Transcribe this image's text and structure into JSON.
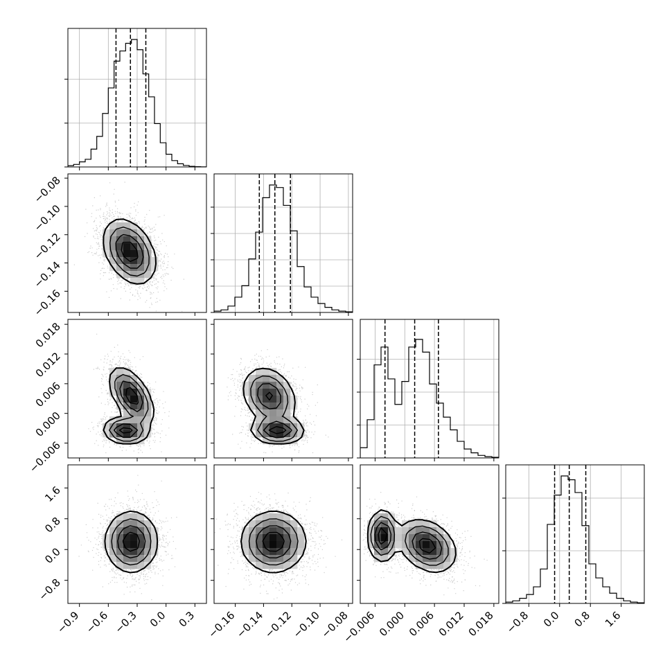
{
  "chart_data": {
    "type": "corner",
    "title": "",
    "colors": {
      "ink": "#000000",
      "grid": "#b0b0b0",
      "scatter": "#6e6e6e",
      "panel_bg": "#ffffff"
    },
    "grid": true,
    "params": [
      {
        "range": [
          -1.02,
          0.42
        ],
        "ticks": [
          -0.9,
          -0.6,
          -0.3,
          0.0,
          0.3
        ],
        "tick_labels": [
          "−0.9",
          "−0.6",
          "−0.3",
          "0.0",
          "0.3"
        ],
        "quantiles": [
          -0.52,
          -0.37,
          -0.21
        ],
        "hist_y_ticks": [
          0.0,
          0.333,
          0.667
        ],
        "hist": [
          0.01,
          0.02,
          0.04,
          0.06,
          0.14,
          0.24,
          0.42,
          0.62,
          0.83,
          0.91,
          0.97,
          1.0,
          0.92,
          0.73,
          0.55,
          0.34,
          0.19,
          0.1,
          0.05,
          0.025,
          0.012,
          0.005,
          0.002,
          0.001
        ],
        "mean": -0.37,
        "sd": 0.13
      },
      {
        "range": [
          -0.175,
          -0.077
        ],
        "ticks": [
          -0.16,
          -0.14,
          -0.12,
          -0.1,
          -0.08
        ],
        "tick_labels": [
          "−0.16",
          "−0.14",
          "−0.12",
          "−0.10",
          "−0.08"
        ],
        "quantiles": [
          -0.143,
          -0.132,
          -0.121
        ],
        "hist_y_ticks": [
          0.0,
          0.2,
          0.4,
          0.6,
          0.8
        ],
        "hist": [
          0.01,
          0.02,
          0.05,
          0.12,
          0.21,
          0.42,
          0.63,
          0.9,
          1.0,
          0.98,
          0.84,
          0.64,
          0.36,
          0.2,
          0.12,
          0.07,
          0.04,
          0.02,
          0.01,
          0.005
        ],
        "mean": -0.132,
        "sd": 0.011
      },
      {
        "range": [
          -0.009,
          0.019
        ],
        "ticks": [
          -0.006,
          0.0,
          0.006,
          0.012,
          0.018
        ],
        "tick_labels": [
          "−0.006",
          "0.000",
          "0.006",
          "0.012",
          "0.018"
        ],
        "quantiles": [
          -0.004,
          0.002,
          0.0068
        ],
        "hist_y_ticks": [
          0.0,
          0.25,
          0.5,
          0.75
        ],
        "hist": [
          0.08,
          0.3,
          0.73,
          0.87,
          0.62,
          0.42,
          0.6,
          0.87,
          0.93,
          0.83,
          0.58,
          0.43,
          0.32,
          0.22,
          0.13,
          0.07,
          0.04,
          0.02,
          0.01,
          0.005
        ],
        "mean": 0.002,
        "sd": 0.0045
      },
      {
        "range": [
          -1.4,
          2.2
        ],
        "ticks": [
          -0.8,
          0.0,
          0.8,
          1.6
        ],
        "tick_labels": [
          "−0.8",
          "0.0",
          "0.8",
          "1.6"
        ],
        "quantiles": [
          -0.13,
          0.25,
          0.68
        ],
        "hist_y_ticks": [
          0.0,
          0.4,
          0.8
        ],
        "hist": [
          0.01,
          0.02,
          0.04,
          0.07,
          0.13,
          0.27,
          0.62,
          0.85,
          1.0,
          0.97,
          0.87,
          0.61,
          0.31,
          0.2,
          0.13,
          0.08,
          0.04,
          0.02,
          0.01,
          0.005
        ],
        "mean": 0.25,
        "sd": 0.38
      }
    ],
    "pairs": [
      {
        "row": 1,
        "col": 0,
        "label": "param 2 vs param 1",
        "components": [
          {
            "w": 1.0,
            "mx": -0.38,
            "my": -0.132,
            "sx": 0.13,
            "sy": 0.011,
            "rho": -0.35
          }
        ]
      },
      {
        "row": 2,
        "col": 0,
        "label": "param 3 vs param 1",
        "components": [
          {
            "w": 0.65,
            "mx": -0.36,
            "my": 0.0035,
            "sx": 0.11,
            "sy": 0.0028,
            "rho": -0.55
          },
          {
            "w": 0.35,
            "mx": -0.42,
            "my": -0.0035,
            "sx": 0.11,
            "sy": 0.0013,
            "rho": -0.1
          }
        ]
      },
      {
        "row": 2,
        "col": 1,
        "label": "param 3 vs param 2",
        "components": [
          {
            "w": 0.65,
            "mx": -0.136,
            "my": 0.0035,
            "sx": 0.009,
            "sy": 0.0028,
            "rho": -0.25
          },
          {
            "w": 0.35,
            "mx": -0.13,
            "my": -0.0035,
            "sx": 0.009,
            "sy": 0.0013,
            "rho": -0.05
          }
        ]
      },
      {
        "row": 3,
        "col": 0,
        "label": "param 4 vs param 1",
        "components": [
          {
            "w": 1.0,
            "mx": -0.36,
            "my": 0.2,
            "sx": 0.13,
            "sy": 0.38,
            "rho": 0.0
          }
        ]
      },
      {
        "row": 3,
        "col": 1,
        "label": "param 4 vs param 2",
        "components": [
          {
            "w": 1.0,
            "mx": -0.133,
            "my": 0.2,
            "sx": 0.011,
            "sy": 0.38,
            "rho": 0.0
          }
        ]
      },
      {
        "row": 3,
        "col": 2,
        "label": "param 4 vs param 3",
        "components": [
          {
            "w": 0.35,
            "mx": -0.0045,
            "my": 0.35,
            "sx": 0.0014,
            "sy": 0.32,
            "rho": 0.0
          },
          {
            "w": 0.65,
            "mx": 0.0045,
            "my": 0.1,
            "sx": 0.0028,
            "sy": 0.33,
            "rho": -0.3
          }
        ]
      }
    ]
  }
}
